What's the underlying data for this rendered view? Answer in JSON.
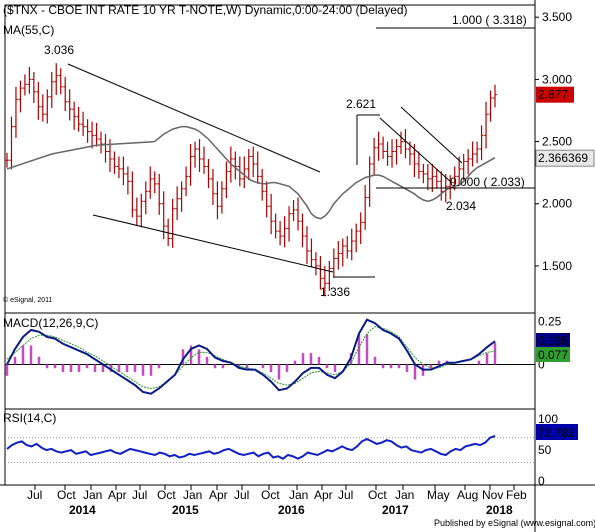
{
  "header": {
    "title": "($TNX - CBOE INT RATE 10 YR T-NOTE,W) Dynamic,0:00-24:00 (Delayed)"
  },
  "footer": {
    "publisher": "Published by eSignal (www.esignal.com)",
    "credit": "© eSignal, 2011"
  },
  "chart_data": [
    {
      "type": "candlestick",
      "name": "price",
      "overlay_label": "MA(55,C)",
      "yticks": [
        "3.500",
        "3.000",
        "2.500",
        "2.000",
        "1.500"
      ],
      "ylim": [
        1.25,
        3.55
      ],
      "last_price": "2.877",
      "ma_value": "2.366369",
      "close": [
        2.35,
        2.62,
        2.84,
        2.93,
        2.96,
        3.0,
        2.9,
        2.78,
        2.72,
        2.86,
        2.98,
        3.03,
        2.94,
        2.82,
        2.76,
        2.7,
        2.64,
        2.62,
        2.58,
        2.55,
        2.52,
        2.48,
        2.42,
        2.36,
        2.3,
        2.28,
        2.24,
        2.18,
        1.95,
        1.9,
        2.02,
        2.1,
        2.2,
        2.16,
        2.0,
        1.82,
        1.72,
        1.96,
        2.04,
        2.12,
        2.22,
        2.38,
        2.44,
        2.36,
        2.3,
        2.2,
        2.08,
        1.98,
        2.12,
        2.26,
        2.36,
        2.3,
        2.2,
        2.28,
        2.38,
        2.32,
        2.22,
        2.1,
        1.98,
        1.86,
        1.78,
        1.74,
        1.8,
        1.92,
        1.95,
        1.86,
        1.74,
        1.62,
        1.55,
        1.5,
        1.4,
        1.36,
        1.48,
        1.56,
        1.6,
        1.66,
        1.62,
        1.7,
        1.78,
        1.85,
        2.05,
        2.32,
        2.45,
        2.48,
        2.42,
        2.38,
        2.42,
        2.46,
        2.5,
        2.44,
        2.4,
        2.32,
        2.26,
        2.24,
        2.2,
        2.22,
        2.18,
        2.1,
        2.14,
        2.17,
        2.22,
        2.28,
        2.34,
        2.36,
        2.4,
        2.44,
        2.55,
        2.72,
        2.85,
        2.877
      ],
      "ma": [
        2.5,
        2.53,
        2.56,
        2.58,
        2.6,
        2.61,
        2.62,
        2.62,
        2.61,
        2.6,
        2.58,
        2.55,
        2.52,
        2.48,
        2.44,
        2.4,
        2.36,
        2.32,
        2.29,
        2.26,
        2.23,
        2.2,
        2.18,
        2.17,
        2.16,
        2.16,
        2.17,
        2.17,
        2.16,
        2.15,
        2.14,
        2.11,
        2.08,
        2.03,
        1.98,
        1.92,
        1.89,
        1.88,
        1.9,
        1.94,
        2.0,
        2.04,
        2.08,
        2.11,
        2.14,
        2.17,
        2.19,
        2.21,
        2.22,
        2.23,
        2.23,
        2.22,
        2.2,
        2.18,
        2.16,
        2.14,
        2.12,
        2.1,
        2.08,
        2.05,
        2.03,
        2.02,
        2.03,
        2.05,
        2.08,
        2.11,
        2.13,
        2.14,
        2.15,
        2.18,
        2.22,
        2.26,
        2.29,
        2.31,
        2.33,
        2.35,
        2.37
      ],
      "ma_x0": 33,
      "annotations": [
        "3.036",
        "2.621",
        "1.336",
        "2.034",
        "1.000 ( 3.318)",
        "0.000 ( 2.033)"
      ],
      "annotation_values": [
        3.036,
        2.621,
        1.336,
        2.034,
        3.318,
        2.033
      ]
    },
    {
      "type": "line",
      "name": "macd",
      "label": "MACD(12,26,9,C)",
      "yticks": [
        "0.25",
        "0"
      ],
      "ylim": [
        -0.23,
        0.27
      ],
      "macd_value": "0.135",
      "signal_value": "0.077",
      "macd": [
        0.0,
        0.09,
        0.16,
        0.2,
        0.19,
        0.16,
        0.15,
        0.12,
        0.1,
        0.08,
        0.06,
        0.03,
        0.0,
        -0.03,
        -0.06,
        -0.09,
        -0.12,
        -0.16,
        -0.17,
        -0.14,
        -0.1,
        -0.06,
        0.03,
        0.09,
        0.11,
        0.09,
        0.04,
        0.02,
        0.01,
        -0.02,
        -0.03,
        -0.03,
        -0.06,
        -0.1,
        -0.15,
        -0.14,
        -0.1,
        -0.05,
        -0.02,
        -0.02,
        -0.06,
        -0.08,
        -0.04,
        0.04,
        0.18,
        0.26,
        0.24,
        0.2,
        0.18,
        0.15,
        0.08,
        0.0,
        -0.03,
        -0.03,
        -0.01,
        0.01,
        0.01,
        0.02,
        0.03,
        0.06,
        0.1,
        0.135
      ],
      "signal": [
        0.03,
        0.07,
        0.11,
        0.15,
        0.17,
        0.17,
        0.16,
        0.14,
        0.12,
        0.1,
        0.07,
        0.05,
        0.02,
        -0.01,
        -0.04,
        -0.07,
        -0.1,
        -0.13,
        -0.14,
        -0.13,
        -0.1,
        -0.06,
        -0.01,
        0.04,
        0.07,
        0.07,
        0.05,
        0.03,
        0.01,
        -0.01,
        -0.02,
        -0.03,
        -0.05,
        -0.08,
        -0.11,
        -0.12,
        -0.11,
        -0.08,
        -0.05,
        -0.04,
        -0.05,
        -0.06,
        -0.04,
        0.01,
        0.1,
        0.18,
        0.22,
        0.21,
        0.19,
        0.16,
        0.1,
        0.04,
        0.0,
        -0.02,
        -0.02,
        0.0,
        0.01,
        0.02,
        0.03,
        0.05,
        0.07,
        0.077
      ]
    },
    {
      "type": "line",
      "name": "rsi",
      "label": "RSI(14,C)",
      "yticks": [
        "100",
        "50",
        "0"
      ],
      "ylim": [
        0,
        110
      ],
      "rsi_value": "72.782",
      "rsi": [
        52,
        58,
        62,
        64,
        58,
        56,
        60,
        54,
        50,
        52,
        48,
        46,
        48,
        50,
        44,
        46,
        48,
        42,
        44,
        46,
        48,
        50,
        46,
        44,
        48,
        52,
        50,
        48,
        46,
        44,
        42,
        46,
        44,
        40,
        42,
        38,
        40,
        44,
        42,
        44,
        46,
        48,
        44,
        46,
        50,
        52,
        48,
        44,
        42,
        44,
        46,
        40,
        44,
        46,
        38,
        40,
        36,
        42,
        40,
        36,
        40,
        46,
        44,
        42,
        46,
        50,
        48,
        52,
        56,
        52,
        50,
        56,
        64,
        68,
        64,
        60,
        62,
        66,
        64,
        58,
        54,
        56,
        50,
        48,
        46,
        50,
        52,
        48,
        44,
        42,
        48,
        52,
        50,
        56,
        58,
        60,
        58,
        62,
        70,
        72.782
      ]
    }
  ],
  "xaxis": {
    "months": [
      "Jul",
      "Oct",
      "Jan",
      "Apr",
      "Jul",
      "Oct",
      "Jan",
      "Apr",
      "Jul",
      "Oct",
      "Jan",
      "Apr",
      "Jul",
      "Oct",
      "Jan",
      "May",
      "Aug",
      "Nov",
      "Feb"
    ],
    "years": [
      "2014",
      "2015",
      "2016",
      "2017",
      "2018"
    ]
  },
  "colors": {
    "price_bar": "#b00000",
    "ma_line": "#666666",
    "macd_line": "#0a1a8a",
    "signal_line": "#2e9a2e",
    "hist": "#c24ac2",
    "rsi_line": "#1020c8",
    "price_tag": "#cc0000",
    "ma_tag": "#e8e8e8",
    "macd_tag": "#000080",
    "signal_tag": "#2ea02e",
    "rsi_tag": "#0000aa"
  }
}
